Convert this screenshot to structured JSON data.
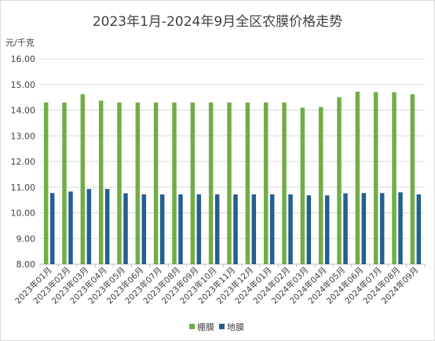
{
  "chart_data": {
    "type": "bar",
    "title": "2023年1月-2024年9月全区农膜价格走势",
    "ylabel": "元/千克",
    "ylim": [
      8.0,
      16.0
    ],
    "ystep": 1.0,
    "yticks": [
      "8.00",
      "9.00",
      "10.00",
      "11.00",
      "12.00",
      "13.00",
      "14.00",
      "15.00",
      "16.00"
    ],
    "grid": true,
    "legend_position": "bottom",
    "categories": [
      "2023年01月",
      "2023年02月",
      "2023年03月",
      "2023年04月",
      "2023年05月",
      "2023年06月",
      "2023年07月",
      "2023年08月",
      "2023年09月",
      "2023年10月",
      "2023年11月",
      "2023年12月",
      "2024年01月",
      "2024年02月",
      "2024年03月",
      "2024年04月",
      "2024年05月",
      "2024年06月",
      "2024年07月",
      "2024年08月",
      "2024年09月"
    ],
    "series": [
      {
        "name": "棚膜",
        "color": "#70ad47",
        "values": [
          14.3,
          14.3,
          14.62,
          14.37,
          14.3,
          14.3,
          14.3,
          14.3,
          14.3,
          14.3,
          14.3,
          14.3,
          14.3,
          14.3,
          14.1,
          14.12,
          14.5,
          14.72,
          14.7,
          14.7,
          14.62
        ]
      },
      {
        "name": "地膜",
        "color": "#255e91",
        "values": [
          10.77,
          10.83,
          10.93,
          10.93,
          10.76,
          10.72,
          10.72,
          10.72,
          10.72,
          10.72,
          10.72,
          10.72,
          10.72,
          10.72,
          10.68,
          10.68,
          10.76,
          10.77,
          10.77,
          10.8,
          10.72
        ]
      }
    ]
  }
}
